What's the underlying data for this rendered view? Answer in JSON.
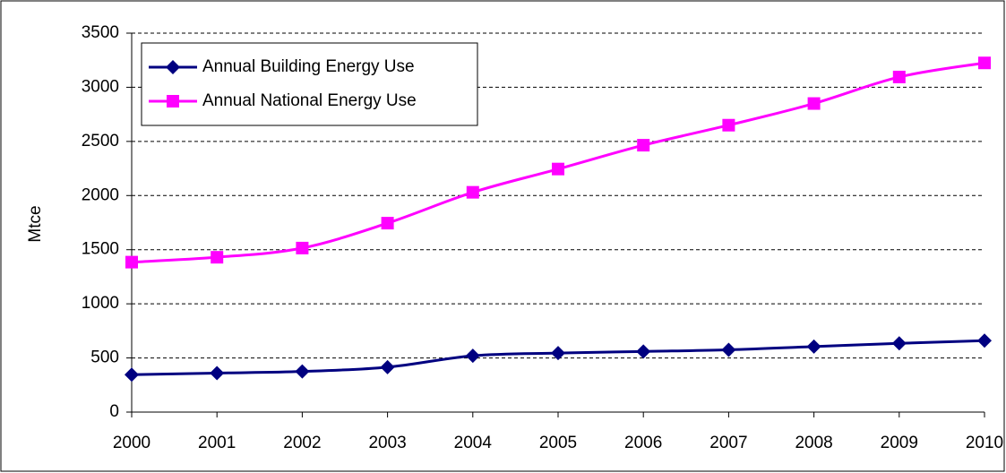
{
  "chart_data": {
    "type": "line",
    "y_label": "Mtce",
    "x": [
      2000,
      2001,
      2002,
      2003,
      2004,
      2005,
      2006,
      2007,
      2008,
      2009,
      2010
    ],
    "xlim": [
      2000,
      2010
    ],
    "xticks": [
      2000,
      2001,
      2002,
      2003,
      2004,
      2005,
      2006,
      2007,
      2008,
      2009,
      2010
    ],
    "ylim": [
      0,
      3500
    ],
    "yticks": [
      0,
      500,
      1000,
      1500,
      2000,
      2500,
      3000,
      3500
    ],
    "grid": true,
    "legend": "upper left",
    "series": [
      {
        "name": "Annual Building Energy Use",
        "color": "#000080",
        "marker": "diamond",
        "values": [
          345,
          360,
          375,
          415,
          520,
          545,
          560,
          575,
          605,
          635,
          660
        ]
      },
      {
        "name": "Annual National Energy Use",
        "color": "#ff00ff",
        "marker": "square",
        "values": [
          1385,
          1430,
          1515,
          1745,
          2030,
          2245,
          2465,
          2650,
          2850,
          3095,
          3225
        ]
      }
    ]
  }
}
